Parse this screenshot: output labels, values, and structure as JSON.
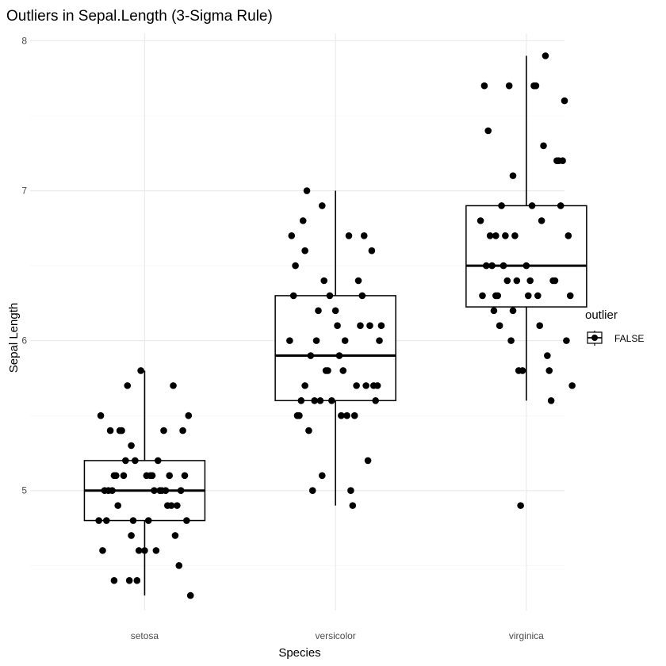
{
  "chart_data": {
    "type": "boxplot-jitter",
    "title": "Outliers in Sepal.Length (3-Sigma Rule)",
    "xlabel": "Species",
    "ylabel": "Sepal Length",
    "categories": [
      "setosa",
      "versicolor",
      "virginica"
    ],
    "ylim": [
      4.2,
      8.05
    ],
    "yticks": [
      5,
      6,
      7,
      8
    ],
    "grid": true,
    "legend": {
      "title": "outlier",
      "entries": [
        "FALSE"
      ],
      "placement": "right"
    },
    "boxes": [
      {
        "category": "setosa",
        "whisker_low": 4.3,
        "q1": 4.8,
        "median": 5.0,
        "q3": 5.2,
        "whisker_high": 5.8
      },
      {
        "category": "versicolor",
        "whisker_low": 4.9,
        "q1": 5.6,
        "median": 5.9,
        "q3": 6.3,
        "whisker_high": 7.0
      },
      {
        "category": "virginica",
        "whisker_low": 5.6,
        "q1": 6.225,
        "median": 6.5,
        "q3": 6.9,
        "whisker_high": 7.9
      }
    ],
    "points": [
      {
        "category": "setosa",
        "x": 0.85,
        "y": 5.1
      },
      {
        "category": "setosa",
        "x": 1.12,
        "y": 4.9
      },
      {
        "category": "setosa",
        "x": 0.93,
        "y": 4.7
      },
      {
        "category": "setosa",
        "x": 1.06,
        "y": 4.6
      },
      {
        "category": "setosa",
        "x": 0.79,
        "y": 5.0
      },
      {
        "category": "setosa",
        "x": 1.2,
        "y": 5.4
      },
      {
        "category": "setosa",
        "x": 0.97,
        "y": 4.6
      },
      {
        "category": "setosa",
        "x": 1.09,
        "y": 5.0
      },
      {
        "category": "setosa",
        "x": 0.84,
        "y": 4.4
      },
      {
        "category": "setosa",
        "x": 1.17,
        "y": 4.9
      },
      {
        "category": "setosa",
        "x": 0.88,
        "y": 5.4
      },
      {
        "category": "setosa",
        "x": 1.02,
        "y": 4.8
      },
      {
        "category": "setosa",
        "x": 0.76,
        "y": 4.8
      },
      {
        "category": "setosa",
        "x": 1.24,
        "y": 4.3
      },
      {
        "category": "setosa",
        "x": 0.98,
        "y": 5.8
      },
      {
        "category": "setosa",
        "x": 1.15,
        "y": 5.7
      },
      {
        "category": "setosa",
        "x": 0.82,
        "y": 5.4
      },
      {
        "category": "setosa",
        "x": 1.04,
        "y": 5.1
      },
      {
        "category": "setosa",
        "x": 0.91,
        "y": 5.7
      },
      {
        "category": "setosa",
        "x": 1.21,
        "y": 5.1
      },
      {
        "category": "setosa",
        "x": 0.87,
        "y": 5.4
      },
      {
        "category": "setosa",
        "x": 1.13,
        "y": 5.1
      },
      {
        "category": "setosa",
        "x": 0.78,
        "y": 4.6
      },
      {
        "category": "setosa",
        "x": 1.01,
        "y": 5.1
      },
      {
        "category": "setosa",
        "x": 0.94,
        "y": 4.8
      },
      {
        "category": "setosa",
        "x": 1.19,
        "y": 5.0
      },
      {
        "category": "setosa",
        "x": 0.83,
        "y": 5.0
      },
      {
        "category": "setosa",
        "x": 1.07,
        "y": 5.2
      },
      {
        "category": "setosa",
        "x": 0.9,
        "y": 5.2
      },
      {
        "category": "setosa",
        "x": 1.16,
        "y": 4.7
      },
      {
        "category": "setosa",
        "x": 0.8,
        "y": 4.8
      },
      {
        "category": "setosa",
        "x": 1.1,
        "y": 5.4
      },
      {
        "category": "setosa",
        "x": 0.95,
        "y": 5.2
      },
      {
        "category": "setosa",
        "x": 1.23,
        "y": 5.5
      },
      {
        "category": "setosa",
        "x": 0.86,
        "y": 4.9
      },
      {
        "category": "setosa",
        "x": 1.05,
        "y": 5.0
      },
      {
        "category": "setosa",
        "x": 0.77,
        "y": 5.5
      },
      {
        "category": "setosa",
        "x": 1.14,
        "y": 4.9
      },
      {
        "category": "setosa",
        "x": 0.92,
        "y": 4.4
      },
      {
        "category": "setosa",
        "x": 1.03,
        "y": 5.1
      },
      {
        "category": "setosa",
        "x": 0.81,
        "y": 5.0
      },
      {
        "category": "setosa",
        "x": 1.18,
        "y": 4.5
      },
      {
        "category": "setosa",
        "x": 0.96,
        "y": 4.4
      },
      {
        "category": "setosa",
        "x": 1.08,
        "y": 5.0
      },
      {
        "category": "setosa",
        "x": 0.89,
        "y": 5.1
      },
      {
        "category": "setosa",
        "x": 1.22,
        "y": 4.8
      },
      {
        "category": "setosa",
        "x": 0.84,
        "y": 5.1
      },
      {
        "category": "setosa",
        "x": 1.0,
        "y": 4.6
      },
      {
        "category": "setosa",
        "x": 0.93,
        "y": 5.3
      },
      {
        "category": "setosa",
        "x": 1.11,
        "y": 5.0
      },
      {
        "category": "versicolor",
        "x": 1.85,
        "y": 7.0
      },
      {
        "category": "versicolor",
        "x": 2.12,
        "y": 6.4
      },
      {
        "category": "versicolor",
        "x": 1.93,
        "y": 6.9
      },
      {
        "category": "versicolor",
        "x": 2.06,
        "y": 5.5
      },
      {
        "category": "versicolor",
        "x": 1.79,
        "y": 6.5
      },
      {
        "category": "versicolor",
        "x": 2.2,
        "y": 5.7
      },
      {
        "category": "versicolor",
        "x": 1.97,
        "y": 6.3
      },
      {
        "category": "versicolor",
        "x": 2.09,
        "y": 4.9
      },
      {
        "category": "versicolor",
        "x": 1.84,
        "y": 6.6
      },
      {
        "category": "versicolor",
        "x": 2.17,
        "y": 5.2
      },
      {
        "category": "versicolor",
        "x": 1.88,
        "y": 5.0
      },
      {
        "category": "versicolor",
        "x": 2.02,
        "y": 5.9
      },
      {
        "category": "versicolor",
        "x": 1.76,
        "y": 6.0
      },
      {
        "category": "versicolor",
        "x": 2.24,
        "y": 6.1
      },
      {
        "category": "versicolor",
        "x": 1.98,
        "y": 5.6
      },
      {
        "category": "versicolor",
        "x": 2.15,
        "y": 6.7
      },
      {
        "category": "versicolor",
        "x": 1.82,
        "y": 5.6
      },
      {
        "category": "versicolor",
        "x": 2.04,
        "y": 5.8
      },
      {
        "category": "versicolor",
        "x": 1.91,
        "y": 6.2
      },
      {
        "category": "versicolor",
        "x": 2.21,
        "y": 5.6
      },
      {
        "category": "versicolor",
        "x": 1.87,
        "y": 5.9
      },
      {
        "category": "versicolor",
        "x": 2.13,
        "y": 6.1
      },
      {
        "category": "versicolor",
        "x": 1.78,
        "y": 6.3
      },
      {
        "category": "versicolor",
        "x": 2.01,
        "y": 6.1
      },
      {
        "category": "versicolor",
        "x": 1.94,
        "y": 6.4
      },
      {
        "category": "versicolor",
        "x": 2.19,
        "y": 6.6
      },
      {
        "category": "versicolor",
        "x": 1.83,
        "y": 6.8
      },
      {
        "category": "versicolor",
        "x": 2.07,
        "y": 6.7
      },
      {
        "category": "versicolor",
        "x": 1.9,
        "y": 6.0
      },
      {
        "category": "versicolor",
        "x": 2.16,
        "y": 5.7
      },
      {
        "category": "versicolor",
        "x": 1.8,
        "y": 5.5
      },
      {
        "category": "versicolor",
        "x": 2.1,
        "y": 5.5
      },
      {
        "category": "versicolor",
        "x": 1.95,
        "y": 5.8
      },
      {
        "category": "versicolor",
        "x": 2.23,
        "y": 6.0
      },
      {
        "category": "versicolor",
        "x": 1.86,
        "y": 5.4
      },
      {
        "category": "versicolor",
        "x": 2.05,
        "y": 6.0
      },
      {
        "category": "versicolor",
        "x": 1.77,
        "y": 6.7
      },
      {
        "category": "versicolor",
        "x": 2.14,
        "y": 6.3
      },
      {
        "category": "versicolor",
        "x": 1.92,
        "y": 5.6
      },
      {
        "category": "versicolor",
        "x": 2.03,
        "y": 5.5
      },
      {
        "category": "versicolor",
        "x": 1.81,
        "y": 5.5
      },
      {
        "category": "versicolor",
        "x": 2.18,
        "y": 6.1
      },
      {
        "category": "versicolor",
        "x": 1.96,
        "y": 5.8
      },
      {
        "category": "versicolor",
        "x": 2.08,
        "y": 5.0
      },
      {
        "category": "versicolor",
        "x": 1.89,
        "y": 5.6
      },
      {
        "category": "versicolor",
        "x": 2.22,
        "y": 5.7
      },
      {
        "category": "versicolor",
        "x": 1.84,
        "y": 5.7
      },
      {
        "category": "versicolor",
        "x": 2.0,
        "y": 6.2
      },
      {
        "category": "versicolor",
        "x": 1.93,
        "y": 5.1
      },
      {
        "category": "versicolor",
        "x": 2.11,
        "y": 5.7
      },
      {
        "category": "virginica",
        "x": 2.85,
        "y": 6.3
      },
      {
        "category": "virginica",
        "x": 3.12,
        "y": 5.8
      },
      {
        "category": "virginica",
        "x": 2.93,
        "y": 7.1
      },
      {
        "category": "virginica",
        "x": 3.06,
        "y": 6.3
      },
      {
        "category": "virginica",
        "x": 2.79,
        "y": 6.5
      },
      {
        "category": "virginica",
        "x": 3.2,
        "y": 7.6
      },
      {
        "category": "virginica",
        "x": 2.97,
        "y": 4.9
      },
      {
        "category": "virginica",
        "x": 3.09,
        "y": 7.3
      },
      {
        "category": "virginica",
        "x": 2.84,
        "y": 6.7
      },
      {
        "category": "virginica",
        "x": 3.17,
        "y": 7.2
      },
      {
        "category": "virginica",
        "x": 2.88,
        "y": 6.5
      },
      {
        "category": "virginica",
        "x": 3.02,
        "y": 6.4
      },
      {
        "category": "virginica",
        "x": 2.76,
        "y": 6.8
      },
      {
        "category": "virginica",
        "x": 3.24,
        "y": 5.7
      },
      {
        "category": "virginica",
        "x": 2.98,
        "y": 5.8
      },
      {
        "category": "virginica",
        "x": 3.15,
        "y": 6.4
      },
      {
        "category": "virginica",
        "x": 2.82,
        "y": 6.5
      },
      {
        "category": "virginica",
        "x": 3.04,
        "y": 7.7
      },
      {
        "category": "virginica",
        "x": 2.91,
        "y": 7.7
      },
      {
        "category": "virginica",
        "x": 3.21,
        "y": 6.0
      },
      {
        "category": "virginica",
        "x": 2.87,
        "y": 6.9
      },
      {
        "category": "virginica",
        "x": 3.13,
        "y": 5.6
      },
      {
        "category": "virginica",
        "x": 2.78,
        "y": 7.7
      },
      {
        "category": "virginica",
        "x": 3.01,
        "y": 6.3
      },
      {
        "category": "virginica",
        "x": 2.94,
        "y": 6.7
      },
      {
        "category": "virginica",
        "x": 3.19,
        "y": 7.2
      },
      {
        "category": "virginica",
        "x": 2.83,
        "y": 6.2
      },
      {
        "category": "virginica",
        "x": 3.07,
        "y": 6.1
      },
      {
        "category": "virginica",
        "x": 2.9,
        "y": 6.4
      },
      {
        "category": "virginica",
        "x": 3.16,
        "y": 7.2
      },
      {
        "category": "virginica",
        "x": 2.8,
        "y": 7.4
      },
      {
        "category": "virginica",
        "x": 3.1,
        "y": 7.9
      },
      {
        "category": "virginica",
        "x": 2.95,
        "y": 6.4
      },
      {
        "category": "virginica",
        "x": 3.23,
        "y": 6.3
      },
      {
        "category": "virginica",
        "x": 2.86,
        "y": 6.1
      },
      {
        "category": "virginica",
        "x": 3.05,
        "y": 7.7
      },
      {
        "category": "virginica",
        "x": 2.77,
        "y": 6.3
      },
      {
        "category": "virginica",
        "x": 3.14,
        "y": 6.4
      },
      {
        "category": "virginica",
        "x": 2.92,
        "y": 6.0
      },
      {
        "category": "virginica",
        "x": 3.03,
        "y": 6.9
      },
      {
        "category": "virginica",
        "x": 2.81,
        "y": 6.7
      },
      {
        "category": "virginica",
        "x": 3.18,
        "y": 6.9
      },
      {
        "category": "virginica",
        "x": 2.96,
        "y": 5.8
      },
      {
        "category": "virginica",
        "x": 3.08,
        "y": 6.8
      },
      {
        "category": "virginica",
        "x": 2.89,
        "y": 6.7
      },
      {
        "category": "virginica",
        "x": 3.22,
        "y": 6.7
      },
      {
        "category": "virginica",
        "x": 2.84,
        "y": 6.3
      },
      {
        "category": "virginica",
        "x": 3.0,
        "y": 6.5
      },
      {
        "category": "virginica",
        "x": 2.93,
        "y": 6.2
      },
      {
        "category": "virginica",
        "x": 3.11,
        "y": 5.9
      }
    ]
  }
}
